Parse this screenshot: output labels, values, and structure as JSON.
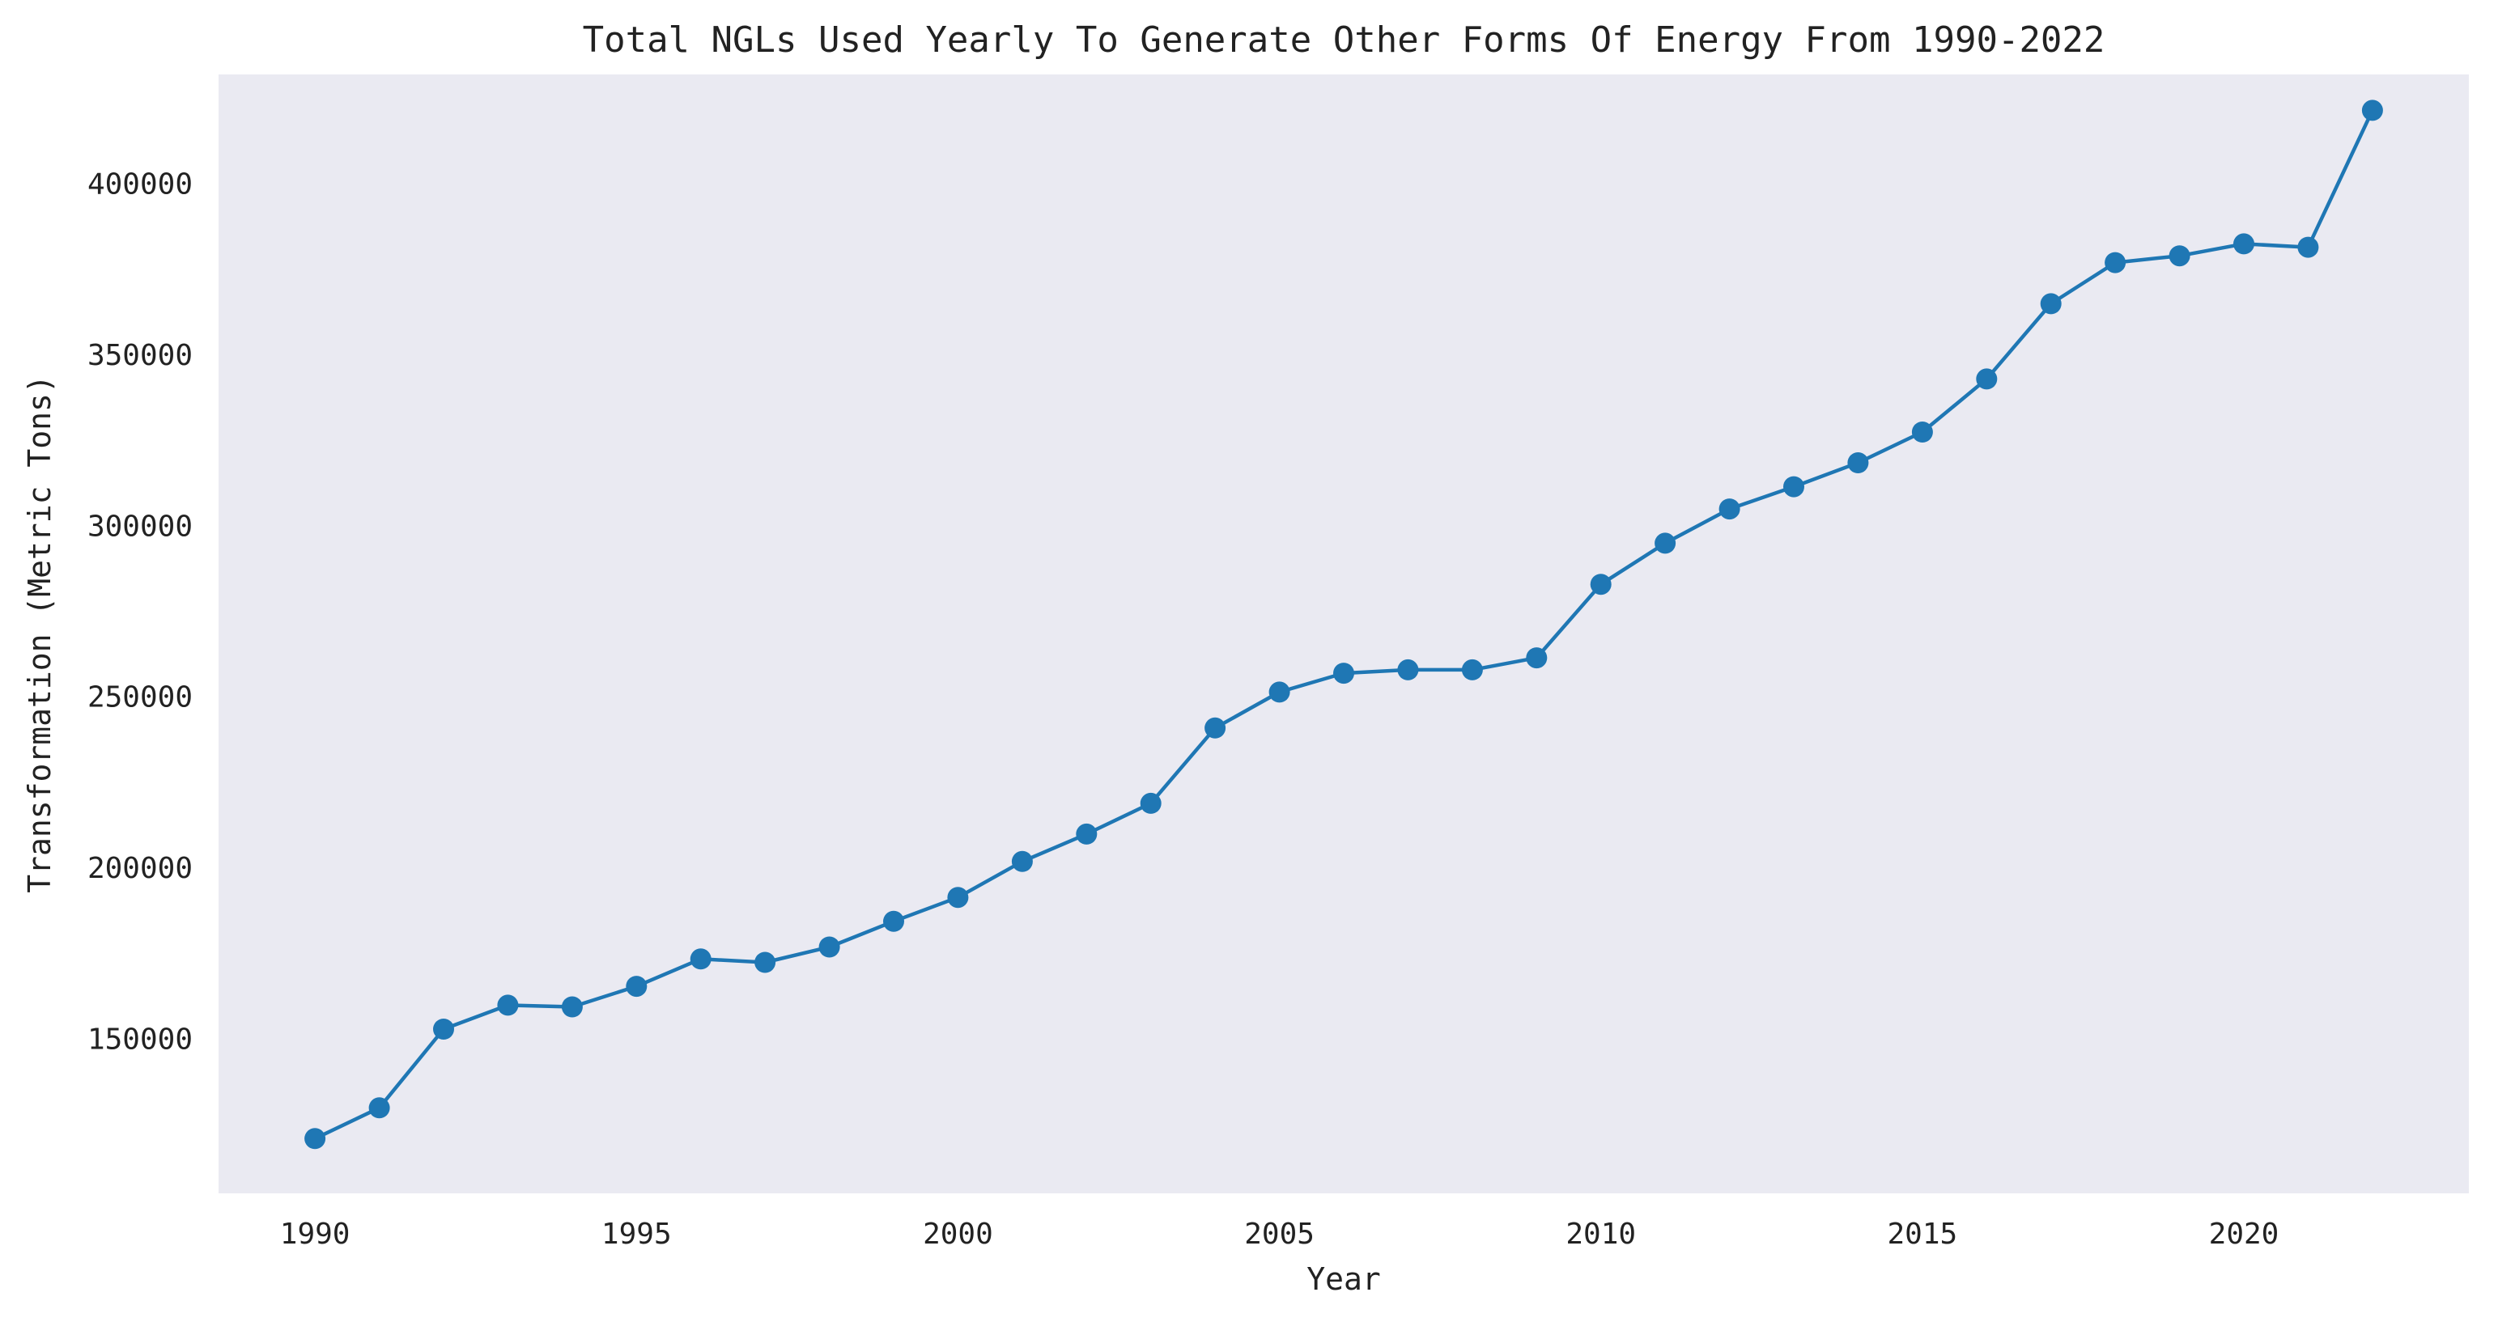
{
  "chart_data": {
    "type": "line",
    "title": "Total NGLs Used Yearly To Generate Other Forms Of Energy From 1990-2022",
    "xlabel": "Year",
    "ylabel": "Transformation (Metric Tons)",
    "xlim": [
      1988.5,
      2023.5
    ],
    "ylim": [
      105000,
      432000
    ],
    "xticks": [
      1990,
      1995,
      2000,
      2005,
      2010,
      2015,
      2020
    ],
    "yticks": [
      150000,
      200000,
      250000,
      300000,
      350000,
      400000
    ],
    "grid": false,
    "series": [
      {
        "color": "#1f77b4",
        "marker": "circle",
        "x": [
          1990,
          1991,
          1992,
          1993,
          1994,
          1995,
          1996,
          1997,
          1998,
          1999,
          2000,
          2001,
          2002,
          2003,
          2004,
          2005,
          2006,
          2007,
          2008,
          2009,
          2010,
          2011,
          2012,
          2013,
          2014,
          2015,
          2016,
          2017,
          2018,
          2019,
          2020,
          2021,
          2022
        ],
        "y": [
          121000,
          130000,
          153000,
          160000,
          159500,
          165500,
          173500,
          172500,
          177000,
          184500,
          191500,
          202000,
          210000,
          219000,
          241000,
          251500,
          257000,
          258000,
          258000,
          261500,
          283000,
          295000,
          305000,
          311500,
          318500,
          327500,
          343000,
          365000,
          377000,
          379000,
          382500,
          381500,
          421500
        ]
      }
    ]
  },
  "colors": {
    "plot_background": "#eaeaf2",
    "line": "#1f77b4"
  }
}
